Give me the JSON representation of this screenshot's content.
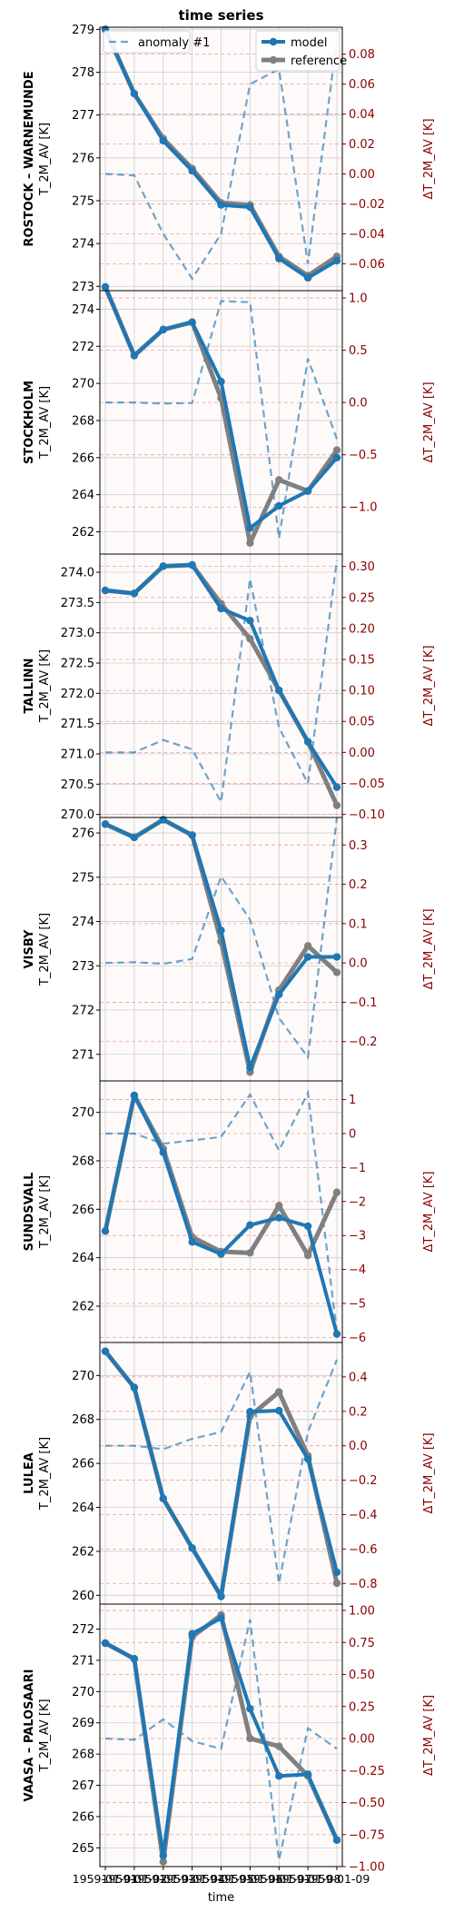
{
  "chart_data": {
    "type": "line",
    "title": "time series",
    "xlabel": "time",
    "x": [
      "1959-01-01",
      "1959-01-02",
      "1959-01-03",
      "1959-01-04",
      "1959-01-05",
      "1959-01-06",
      "1959-01-07",
      "1959-01-08",
      "1959-01-09"
    ],
    "x_tick_labels": [
      "1959-01-01",
      "1959-01-02",
      "1959-01-03",
      "1959-01-04",
      "1959-01-05",
      "1959-01-06",
      "1959-01-07",
      "1959-01-08",
      "1959-01-09"
    ],
    "legend": [
      {
        "name": "anomaly #1",
        "style": "dashed",
        "color": "#1f77b4",
        "position": "top-left"
      },
      {
        "name": "model",
        "style": "solid-marker",
        "color": "#1f77b4",
        "position": "top-right"
      },
      {
        "name": "reference",
        "style": "solid-marker",
        "color": "#808080",
        "position": "top-right"
      }
    ],
    "colors": {
      "model": "#1f77b4",
      "reference": "#808080",
      "anomaly": "#1f77b4",
      "right_axis": "#8b0000",
      "grid": "#cccccc",
      "anomaly_grid": "#e8a0a0"
    },
    "grid": true,
    "panels": [
      {
        "name": "ROSTOCK – WARNEMUNDE",
        "ylabel": "T_2M_AV [K]",
        "y2label": "ΔT_2M_AV [K]",
        "ylim": [
          272.9,
          279.05
        ],
        "yticks": [
          273,
          274,
          275,
          276,
          277,
          278,
          279
        ],
        "ytick_labels": [
          "273",
          "274",
          "275",
          "276",
          "277",
          "278",
          "279"
        ],
        "y2lim": [
          -0.078,
          0.098
        ],
        "y2ticks": [
          -0.06,
          -0.04,
          -0.02,
          0,
          0.02,
          0.04,
          0.06,
          0.08
        ],
        "y2tick_labels": [
          "−0.06",
          "−0.04",
          "−0.02",
          "0.00",
          "0.02",
          "0.04",
          "0.06",
          "0.08"
        ],
        "model": [
          279.0,
          277.5,
          276.4,
          275.7,
          274.9,
          274.85,
          273.65,
          273.2,
          273.6
        ],
        "reference": [
          279.0,
          277.5,
          276.45,
          275.75,
          274.95,
          274.9,
          273.7,
          273.25,
          273.7
        ],
        "anomaly": [
          0.0,
          -0.001,
          -0.04,
          -0.07,
          -0.04,
          0.06,
          0.07,
          -0.06,
          0.09
        ]
      },
      {
        "name": "STOCKHOLM",
        "ylabel": "T_2M_AV [K]",
        "y2label": "ΔT_2M_AV [K]",
        "ylim": [
          260.8,
          275.0
        ],
        "yticks": [
          262,
          264,
          266,
          268,
          270,
          272,
          274
        ],
        "ytick_labels": [
          "262",
          "264",
          "266",
          "268",
          "270",
          "272",
          "274"
        ],
        "y2lim": [
          -1.45,
          1.07
        ],
        "y2ticks": [
          -1.0,
          -0.5,
          0.0,
          0.5,
          1.0
        ],
        "y2tick_labels": [
          "−1.0",
          "−0.5",
          "0.0",
          "0.5",
          "1.0"
        ],
        "model": [
          275.2,
          271.5,
          272.9,
          273.3,
          270.1,
          262.2,
          263.4,
          264.2,
          266.0
        ],
        "reference": [
          275.2,
          271.5,
          272.9,
          273.3,
          269.2,
          261.4,
          264.8,
          264.2,
          266.4
        ],
        "anomaly": [
          0.0,
          0.0,
          -0.01,
          -0.005,
          0.97,
          0.96,
          -1.3,
          0.42,
          -0.35
        ]
      },
      {
        "name": "TALLINN",
        "ylabel": "T_2M_AV [K]",
        "y2label": "ΔT_2M_AV [K]",
        "ylim": [
          269.95,
          274.3
        ],
        "yticks": [
          270.0,
          270.5,
          271.0,
          271.5,
          272.0,
          272.5,
          273.0,
          273.5,
          274.0
        ],
        "ytick_labels": [
          "270.0",
          "270.5",
          "271.0",
          "271.5",
          "272.0",
          "272.5",
          "273.0",
          "273.5",
          "274.0"
        ],
        "y2lim": [
          -0.105,
          0.32
        ],
        "y2ticks": [
          -0.1,
          -0.05,
          0.0,
          0.05,
          0.1,
          0.15,
          0.2,
          0.25,
          0.3
        ],
        "y2tick_labels": [
          "−0.10",
          "−0.05",
          "0.00",
          "0.05",
          "0.10",
          "0.15",
          "0.20",
          "0.25",
          "0.30"
        ],
        "model": [
          273.7,
          273.65,
          274.1,
          274.12,
          273.4,
          273.2,
          272.05,
          271.2,
          270.45
        ],
        "reference": [
          273.7,
          273.65,
          274.1,
          274.12,
          273.48,
          272.9,
          272.05,
          271.2,
          270.15
        ],
        "anomaly": [
          0.0,
          0.0,
          0.02,
          0.005,
          -0.08,
          0.28,
          0.04,
          -0.05,
          0.31
        ]
      },
      {
        "name": "VISBY",
        "ylabel": "T_2M_AV [K]",
        "y2label": "ΔT_2M_AV [K]",
        "ylim": [
          270.4,
          276.35
        ],
        "yticks": [
          271,
          272,
          273,
          274,
          275,
          276
        ],
        "ytick_labels": [
          "271",
          "272",
          "273",
          "274",
          "275",
          "276"
        ],
        "y2lim": [
          -0.3,
          0.37
        ],
        "y2ticks": [
          -0.2,
          -0.1,
          0.0,
          0.1,
          0.2,
          0.3
        ],
        "y2tick_labels": [
          "−0.2",
          "−0.1",
          "0.0",
          "0.1",
          "0.2",
          "0.3"
        ],
        "model": [
          276.2,
          275.9,
          276.3,
          275.95,
          273.8,
          270.7,
          272.35,
          273.2,
          273.2
        ],
        "reference": [
          276.2,
          275.9,
          276.3,
          275.95,
          273.55,
          270.6,
          272.45,
          273.45,
          272.85
        ],
        "anomaly": [
          0.0,
          0.002,
          -0.002,
          0.01,
          0.22,
          0.11,
          -0.14,
          -0.24,
          0.37
        ]
      },
      {
        "name": "SUNDSVALL",
        "ylabel": "T_2M_AV [K]",
        "y2label": "ΔT_2M_AV [K]",
        "ylim": [
          260.5,
          271.3
        ],
        "yticks": [
          262,
          264,
          266,
          268,
          270
        ],
        "ytick_labels": [
          "262",
          "264",
          "266",
          "268",
          "270"
        ],
        "y2lim": [
          -6.15,
          1.55
        ],
        "y2ticks": [
          -6,
          -5,
          -4,
          -3,
          -2,
          -1,
          0,
          1
        ],
        "y2tick_labels": [
          "−6",
          "−5",
          "−4",
          "−3",
          "−2",
          "−1",
          "0",
          "1"
        ],
        "model": [
          265.1,
          270.7,
          268.35,
          264.65,
          264.15,
          265.35,
          265.65,
          265.3,
          260.85
        ],
        "reference": [
          265.1,
          270.7,
          268.5,
          264.85,
          264.25,
          264.2,
          266.15,
          264.1,
          266.7
        ],
        "anomaly": [
          0.0,
          0.0,
          -0.3,
          -0.2,
          -0.1,
          1.15,
          -0.5,
          1.2,
          -5.85
        ]
      },
      {
        "name": "LULEA",
        "ylabel": "T_2M_AV [K]",
        "y2label": "ΔT_2M_AV [K]",
        "ylim": [
          259.6,
          271.5
        ],
        "yticks": [
          260,
          262,
          264,
          266,
          268,
          270
        ],
        "ytick_labels": [
          "260",
          "262",
          "264",
          "266",
          "268",
          "270"
        ],
        "y2lim": [
          -0.92,
          0.6
        ],
        "y2ticks": [
          -0.8,
          -0.6,
          -0.4,
          -0.2,
          0.0,
          0.2,
          0.4
        ],
        "y2tick_labels": [
          "−0.8",
          "−0.6",
          "−0.4",
          "−0.2",
          "0.0",
          "0.2",
          "0.4"
        ],
        "model": [
          271.1,
          269.45,
          264.4,
          262.15,
          259.95,
          268.35,
          268.4,
          266.2,
          261.05
        ],
        "reference": [
          271.1,
          269.45,
          264.4,
          262.15,
          259.95,
          268.15,
          269.25,
          266.35,
          260.55
        ],
        "anomaly": [
          0.0,
          0.0,
          -0.02,
          0.04,
          0.08,
          0.43,
          -0.8,
          0.08,
          0.5
        ]
      },
      {
        "name": "VAASA – PALOSAARI",
        "ylabel": "T_2M_AV [K]",
        "y2label": "ΔT_2M_AV [K]",
        "ylim": [
          264.4,
          272.8
        ],
        "yticks": [
          265,
          266,
          267,
          268,
          269,
          270,
          271,
          272
        ],
        "ytick_labels": [
          "265",
          "266",
          "267",
          "268",
          "269",
          "270",
          "271",
          "272"
        ],
        "y2lim": [
          -1.0,
          1.05
        ],
        "y2ticks": [
          -1.0,
          -0.75,
          -0.5,
          -0.25,
          0.0,
          0.25,
          0.5,
          0.75,
          1.0
        ],
        "y2tick_labels": [
          "−1.00",
          "−0.75",
          "−0.50",
          "−0.25",
          "0.00",
          "0.25",
          "0.50",
          "0.75",
          "1.00"
        ],
        "model": [
          271.55,
          271.05,
          264.75,
          271.85,
          272.35,
          269.45,
          267.3,
          267.35,
          265.25
        ],
        "reference": [
          271.55,
          271.05,
          264.55,
          271.75,
          272.45,
          268.5,
          268.25,
          267.3,
          265.25
        ],
        "anomaly": [
          0.0,
          -0.01,
          0.15,
          -0.02,
          -0.08,
          0.93,
          -0.95,
          0.08,
          -0.08
        ]
      }
    ]
  }
}
